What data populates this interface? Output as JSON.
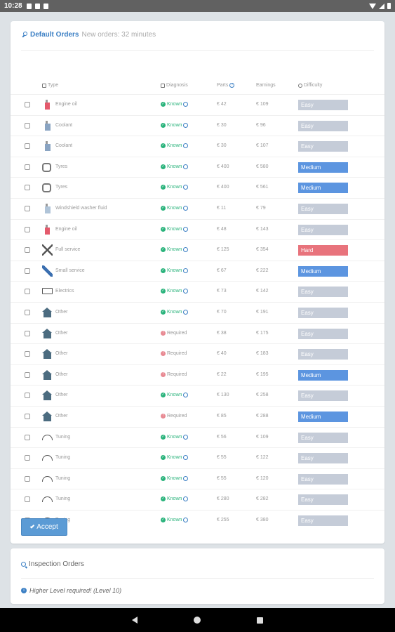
{
  "status": {
    "time": "10:28"
  },
  "default_orders": {
    "title": "Default Orders",
    "subtitle": "New orders: 32 minutes",
    "columns": {
      "type": "Type",
      "diagnosis": "Diagnosis",
      "parts": "Parts",
      "earnings": "Earnings",
      "difficulty": "Difficulty"
    },
    "orders": [
      {
        "icon": "engine-oil-icon",
        "type": "Engine oil",
        "diagnosis": "Known",
        "parts": "€ 42",
        "earnings": "€ 109",
        "difficulty": "Easy"
      },
      {
        "icon": "coolant-icon",
        "type": "Coolant",
        "diagnosis": "Known",
        "parts": "€ 30",
        "earnings": "€ 96",
        "difficulty": "Easy"
      },
      {
        "icon": "coolant-icon",
        "type": "Coolant",
        "diagnosis": "Known",
        "parts": "€ 30",
        "earnings": "€ 107",
        "difficulty": "Easy"
      },
      {
        "icon": "tyre-icon",
        "type": "Tyres",
        "diagnosis": "Known",
        "parts": "€ 400",
        "earnings": "€ 580",
        "difficulty": "Medium"
      },
      {
        "icon": "tyre-icon",
        "type": "Tyres",
        "diagnosis": "Known",
        "parts": "€ 400",
        "earnings": "€ 561",
        "difficulty": "Medium"
      },
      {
        "icon": "washer-fluid-icon",
        "type": "Windshield washer fluid",
        "diagnosis": "Known",
        "parts": "€ 11",
        "earnings": "€ 79",
        "difficulty": "Easy"
      },
      {
        "icon": "engine-oil-icon",
        "type": "Engine oil",
        "diagnosis": "Known",
        "parts": "€ 48",
        "earnings": "€ 143",
        "difficulty": "Easy"
      },
      {
        "icon": "full-service-icon",
        "type": "Full service",
        "diagnosis": "Known",
        "parts": "€ 125",
        "earnings": "€ 354",
        "difficulty": "Hard"
      },
      {
        "icon": "small-service-icon",
        "type": "Small service",
        "diagnosis": "Known",
        "parts": "€ 67",
        "earnings": "€ 222",
        "difficulty": "Medium"
      },
      {
        "icon": "electrics-icon",
        "type": "Electrics",
        "diagnosis": "Known",
        "parts": "€ 73",
        "earnings": "€ 142",
        "difficulty": "Easy"
      },
      {
        "icon": "other-icon",
        "type": "Other",
        "diagnosis": "Known",
        "parts": "€ 70",
        "earnings": "€ 191",
        "difficulty": "Easy"
      },
      {
        "icon": "other-icon",
        "type": "Other",
        "diagnosis": "Required",
        "parts": "€ 38",
        "earnings": "€ 175",
        "difficulty": "Easy"
      },
      {
        "icon": "other-icon",
        "type": "Other",
        "diagnosis": "Required",
        "parts": "€ 40",
        "earnings": "€ 183",
        "difficulty": "Easy"
      },
      {
        "icon": "other-icon",
        "type": "Other",
        "diagnosis": "Required",
        "parts": "€ 22",
        "earnings": "€ 195",
        "difficulty": "Medium"
      },
      {
        "icon": "other-icon",
        "type": "Other",
        "diagnosis": "Known",
        "parts": "€ 130",
        "earnings": "€ 258",
        "difficulty": "Easy"
      },
      {
        "icon": "other-icon",
        "type": "Other",
        "diagnosis": "Required",
        "parts": "€ 85",
        "earnings": "€ 288",
        "difficulty": "Medium"
      },
      {
        "icon": "tuning-icon",
        "type": "Tuning",
        "diagnosis": "Known",
        "parts": "€ 56",
        "earnings": "€ 109",
        "difficulty": "Easy"
      },
      {
        "icon": "tuning-icon",
        "type": "Tuning",
        "diagnosis": "Known",
        "parts": "€ 55",
        "earnings": "€ 122",
        "difficulty": "Easy"
      },
      {
        "icon": "tuning-icon",
        "type": "Tuning",
        "diagnosis": "Known",
        "parts": "€ 55",
        "earnings": "€ 120",
        "difficulty": "Easy"
      },
      {
        "icon": "tuning-icon",
        "type": "Tuning",
        "diagnosis": "Known",
        "parts": "€ 280",
        "earnings": "€ 282",
        "difficulty": "Easy"
      },
      {
        "icon": "tuning-icon",
        "type": "Tuning",
        "diagnosis": "Known",
        "parts": "€ 255",
        "earnings": "€ 380",
        "difficulty": "Easy"
      }
    ],
    "accept_label": "Accept"
  },
  "inspection_orders": {
    "title": "Inspection Orders",
    "info": "Higher Level required! (Level 10)"
  },
  "colors": {
    "accent": "#3b7fc4",
    "easy": "#c5ccd8",
    "medium": "#5c95e0",
    "hard": "#e8737c",
    "known": "#2bb37c"
  }
}
